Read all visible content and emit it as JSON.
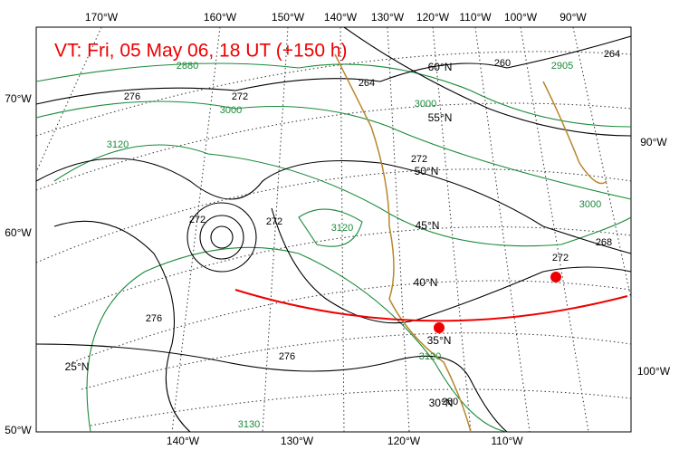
{
  "title": "VT:  Fri, 05 May 06, 18 UT (+150 h)",
  "top_labels": [
    "170°W",
    "160°W",
    "150°W",
    "140°W",
    "130°W",
    "120°W",
    "110°W",
    "100°W",
    "90°W"
  ],
  "bottom_labels": [
    "140°W",
    "130°W",
    "120°W",
    "110°W"
  ],
  "left_labels": [
    "70°W",
    "60°W",
    "50°W"
  ],
  "right_labels": [
    "90°W",
    "100°W"
  ],
  "lat_labels": [
    "60°N",
    "55°N",
    "50°N",
    "45°N",
    "40°N",
    "35°N",
    "30°N",
    "25°N"
  ],
  "black_contour_labels": [
    "276",
    "272",
    "272",
    "272",
    "276",
    "276",
    "260",
    "264",
    "264",
    "268",
    "272",
    "272",
    "280"
  ],
  "green_contour_labels": [
    "2880",
    "3000",
    "3120",
    "3120",
    "3000",
    "3120",
    "3000",
    "2905",
    "3130"
  ]
}
